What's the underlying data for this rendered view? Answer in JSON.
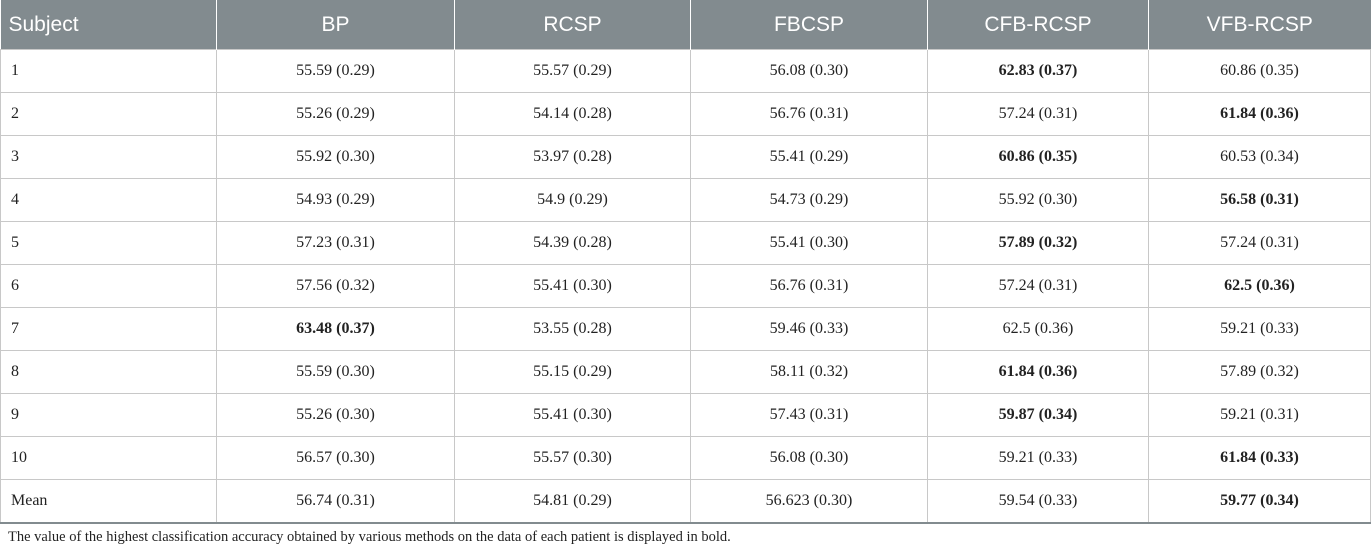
{
  "table": {
    "headers": [
      "Subject",
      "BP",
      "RCSP",
      "FBCSP",
      "CFB-RCSP",
      "VFB-RCSP"
    ],
    "rows": [
      {
        "cells": [
          "1",
          "55.59 (0.29)",
          "55.57 (0.29)",
          "56.08 (0.30)",
          "62.83 (0.37)",
          "60.86 (0.35)"
        ],
        "bold": [
          4
        ]
      },
      {
        "cells": [
          "2",
          "55.26 (0.29)",
          "54.14 (0.28)",
          "56.76 (0.31)",
          "57.24 (0.31)",
          "61.84 (0.36)"
        ],
        "bold": [
          5
        ]
      },
      {
        "cells": [
          "3",
          "55.92 (0.30)",
          "53.97 (0.28)",
          "55.41 (0.29)",
          "60.86 (0.35)",
          "60.53 (0.34)"
        ],
        "bold": [
          4
        ]
      },
      {
        "cells": [
          "4",
          "54.93 (0.29)",
          "54.9 (0.29)",
          "54.73 (0.29)",
          "55.92 (0.30)",
          "56.58 (0.31)"
        ],
        "bold": [
          5
        ]
      },
      {
        "cells": [
          "5",
          "57.23 (0.31)",
          "54.39 (0.28)",
          "55.41 (0.30)",
          "57.89 (0.32)",
          "57.24 (0.31)"
        ],
        "bold": [
          4
        ]
      },
      {
        "cells": [
          "6",
          "57.56 (0.32)",
          "55.41 (0.30)",
          "56.76 (0.31)",
          "57.24 (0.31)",
          "62.5 (0.36)"
        ],
        "bold": [
          5
        ]
      },
      {
        "cells": [
          "7",
          "63.48 (0.37)",
          "53.55 (0.28)",
          "59.46 (0.33)",
          "62.5 (0.36)",
          "59.21 (0.33)"
        ],
        "bold": [
          1
        ]
      },
      {
        "cells": [
          "8",
          "55.59 (0.30)",
          "55.15 (0.29)",
          "58.11 (0.32)",
          "61.84 (0.36)",
          "57.89 (0.32)"
        ],
        "bold": [
          4
        ]
      },
      {
        "cells": [
          "9",
          "55.26 (0.30)",
          "55.41 (0.30)",
          "57.43 (0.31)",
          "59.87 (0.34)",
          "59.21 (0.31)"
        ],
        "bold": [
          4
        ]
      },
      {
        "cells": [
          "10",
          "56.57 (0.30)",
          "55.57 (0.30)",
          "56.08 (0.30)",
          "59.21 (0.33)",
          "61.84 (0.33)"
        ],
        "bold": [
          5
        ]
      },
      {
        "cells": [
          "Mean",
          "56.74 (0.31)",
          "54.81 (0.29)",
          "56.623 (0.30)",
          "59.54 (0.33)",
          "59.77 (0.34)"
        ],
        "bold": [
          5
        ]
      }
    ]
  },
  "footnote": "The value of the highest classification accuracy obtained by various methods on the data of each patient is displayed in bold.",
  "colors": {
    "header_bg": "#828b8f",
    "header_text": "#ffffff",
    "grid": "#c8c8c8"
  }
}
